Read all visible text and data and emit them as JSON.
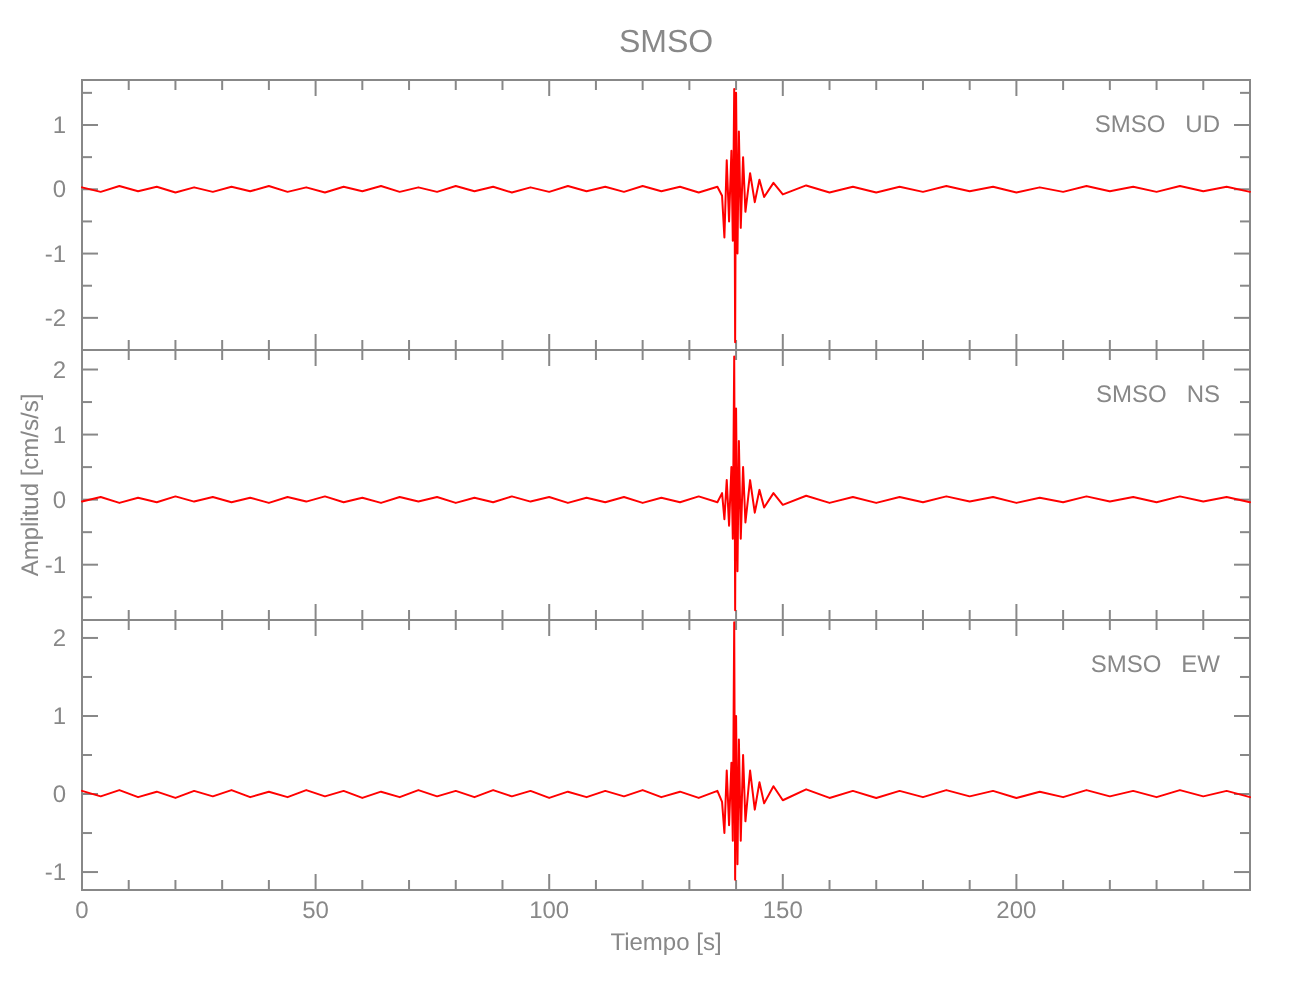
{
  "chart_data": [
    {
      "type": "line",
      "title": "SMSO",
      "annotations": [
        "SMSO   UD"
      ],
      "tick_labels": "y",
      "xlim": [
        0,
        250
      ],
      "ylim": [
        -2.5,
        1.7
      ],
      "xticks": [
        0,
        {
          "value": 10,
          "label": null
        },
        {
          "value": 20,
          "label": null
        },
        {
          "value": 30,
          "label": null
        },
        {
          "value": 40,
          "label": null
        },
        50,
        {
          "value": 60,
          "label": null
        },
        {
          "value": 70,
          "label": null
        },
        {
          "value": 80,
          "label": null
        },
        {
          "value": 90,
          "label": null
        },
        100,
        {
          "value": 110,
          "label": null
        },
        {
          "value": 120,
          "label": null
        },
        {
          "value": 130,
          "label": null
        },
        {
          "value": 140,
          "label": null
        },
        150,
        {
          "value": 160,
          "label": null
        },
        {
          "value": 170,
          "label": null
        },
        {
          "value": 180,
          "label": null
        },
        {
          "value": 190,
          "label": null
        },
        200,
        {
          "value": 210,
          "label": null
        },
        {
          "value": 220,
          "label": null
        },
        {
          "value": 230,
          "label": null
        },
        {
          "value": 240,
          "label": null
        }
      ],
      "yticks": [
        {
          "value": -2.5,
          "label": null
        },
        -2,
        {
          "value": -1.5,
          "label": null
        },
        -1,
        {
          "value": -0.5,
          "label": null
        },
        0,
        {
          "value": 0.5,
          "label": null
        },
        1,
        {
          "value": 1.5,
          "label": null
        }
      ],
      "series": [
        {
          "color": "#ff0000",
          "x": [
            0,
            4,
            8,
            12,
            16,
            20,
            24,
            28,
            32,
            36,
            40,
            44,
            48,
            52,
            56,
            60,
            64,
            68,
            72,
            76,
            80,
            84,
            88,
            92,
            96,
            100,
            104,
            108,
            112,
            116,
            120,
            124,
            128,
            132,
            136,
            137,
            137.5,
            138,
            138.5,
            139,
            139.3,
            139.6,
            139.8,
            140,
            140.3,
            140.6,
            141,
            141.5,
            142,
            143,
            144,
            145,
            146,
            148,
            150,
            155,
            160,
            165,
            170,
            175,
            180,
            185,
            190,
            195,
            200,
            205,
            210,
            215,
            220,
            225,
            230,
            235,
            240,
            245,
            250
          ],
          "values": [
            0.03,
            -0.04,
            0.05,
            -0.03,
            0.04,
            -0.05,
            0.03,
            -0.04,
            0.04,
            -0.03,
            0.05,
            -0.04,
            0.03,
            -0.05,
            0.04,
            -0.03,
            0.05,
            -0.04,
            0.03,
            -0.04,
            0.05,
            -0.03,
            0.04,
            -0.05,
            0.03,
            -0.04,
            0.05,
            -0.03,
            0.04,
            -0.04,
            0.05,
            -0.03,
            0.04,
            -0.05,
            0.04,
            -0.1,
            -0.75,
            0.45,
            -0.5,
            0.6,
            -0.8,
            1.56,
            -2.38,
            1.5,
            -1,
            0.9,
            -0.6,
            0.5,
            -0.35,
            0.25,
            -0.2,
            0.15,
            -0.12,
            0.1,
            -0.08,
            0.06,
            -0.05,
            0.04,
            -0.05,
            0.04,
            -0.04,
            0.05,
            -0.03,
            0.04,
            -0.05,
            0.03,
            -0.04,
            0.05,
            -0.03,
            0.04,
            -0.04,
            0.05,
            -0.03,
            0.04,
            -0.04
          ]
        }
      ]
    },
    {
      "type": "line",
      "ylabel": "Amplitud [cm/s/s]",
      "annotations": [
        "SMSO   NS"
      ],
      "tick_labels": "y",
      "xlim": [
        0,
        250
      ],
      "ylim": [
        -1.85,
        2.3
      ],
      "xticks": [
        0,
        {
          "value": 10,
          "label": null
        },
        {
          "value": 20,
          "label": null
        },
        {
          "value": 30,
          "label": null
        },
        {
          "value": 40,
          "label": null
        },
        50,
        {
          "value": 60,
          "label": null
        },
        {
          "value": 70,
          "label": null
        },
        {
          "value": 80,
          "label": null
        },
        {
          "value": 90,
          "label": null
        },
        100,
        {
          "value": 110,
          "label": null
        },
        {
          "value": 120,
          "label": null
        },
        {
          "value": 130,
          "label": null
        },
        {
          "value": 140,
          "label": null
        },
        150,
        {
          "value": 160,
          "label": null
        },
        {
          "value": 170,
          "label": null
        },
        {
          "value": 180,
          "label": null
        },
        {
          "value": 190,
          "label": null
        },
        200,
        {
          "value": 210,
          "label": null
        },
        {
          "value": 220,
          "label": null
        },
        {
          "value": 230,
          "label": null
        },
        {
          "value": 240,
          "label": null
        }
      ],
      "yticks": [
        {
          "value": -1.5,
          "label": null
        },
        -1,
        {
          "value": -0.5,
          "label": null
        },
        0,
        {
          "value": 0.5,
          "label": null
        },
        1,
        {
          "value": 1.5,
          "label": null
        },
        2
      ],
      "series": [
        {
          "color": "#ff0000",
          "x": [
            0,
            4,
            8,
            12,
            16,
            20,
            24,
            28,
            32,
            36,
            40,
            44,
            48,
            52,
            56,
            60,
            64,
            68,
            72,
            76,
            80,
            84,
            88,
            92,
            96,
            100,
            104,
            108,
            112,
            116,
            120,
            124,
            128,
            132,
            136,
            137,
            137.5,
            138,
            138.5,
            139,
            139.3,
            139.6,
            139.8,
            140,
            140.3,
            140.6,
            141,
            141.5,
            142,
            143,
            144,
            145,
            146,
            148,
            150,
            155,
            160,
            165,
            170,
            175,
            180,
            185,
            190,
            195,
            200,
            205,
            210,
            215,
            220,
            225,
            230,
            235,
            240,
            245,
            250
          ],
          "values": [
            -0.03,
            0.04,
            -0.05,
            0.03,
            -0.04,
            0.05,
            -0.03,
            0.04,
            -0.04,
            0.03,
            -0.05,
            0.04,
            -0.03,
            0.05,
            -0.04,
            0.03,
            -0.05,
            0.04,
            -0.03,
            0.04,
            -0.05,
            0.03,
            -0.04,
            0.05,
            -0.03,
            0.04,
            -0.05,
            0.03,
            -0.04,
            0.04,
            -0.05,
            0.03,
            -0.04,
            0.05,
            -0.04,
            0.1,
            -0.3,
            0.3,
            -0.4,
            0.5,
            -0.6,
            2.2,
            -1.7,
            1.4,
            -1.1,
            0.9,
            -0.6,
            0.5,
            -0.35,
            0.3,
            -0.2,
            0.15,
            -0.12,
            0.1,
            -0.08,
            0.06,
            -0.05,
            0.04,
            -0.05,
            0.04,
            -0.04,
            0.05,
            -0.03,
            0.04,
            -0.05,
            0.03,
            -0.04,
            0.05,
            -0.03,
            0.04,
            -0.04,
            0.05,
            -0.03,
            0.04,
            -0.04
          ]
        }
      ]
    },
    {
      "type": "line",
      "xlabel": "Tiempo [s]",
      "annotations": [
        "SMSO   EW"
      ],
      "xlim": [
        0,
        250
      ],
      "ylim": [
        -1.23,
        2.23
      ],
      "xticks": [
        0,
        {
          "value": 10,
          "label": null
        },
        {
          "value": 20,
          "label": null
        },
        {
          "value": 30,
          "label": null
        },
        {
          "value": 40,
          "label": null
        },
        50,
        {
          "value": 60,
          "label": null
        },
        {
          "value": 70,
          "label": null
        },
        {
          "value": 80,
          "label": null
        },
        {
          "value": 90,
          "label": null
        },
        100,
        {
          "value": 110,
          "label": null
        },
        {
          "value": 120,
          "label": null
        },
        {
          "value": 130,
          "label": null
        },
        {
          "value": 140,
          "label": null
        },
        150,
        {
          "value": 160,
          "label": null
        },
        {
          "value": 170,
          "label": null
        },
        {
          "value": 180,
          "label": null
        },
        {
          "value": 190,
          "label": null
        },
        200,
        {
          "value": 210,
          "label": null
        },
        {
          "value": 220,
          "label": null
        },
        {
          "value": 230,
          "label": null
        },
        {
          "value": 240,
          "label": null
        }
      ],
      "yticks": [
        -1,
        {
          "value": -0.5,
          "label": null
        },
        0,
        {
          "value": 0.5,
          "label": null
        },
        1,
        {
          "value": 1.5,
          "label": null
        },
        2
      ],
      "series": [
        {
          "color": "#ff0000",
          "x": [
            0,
            4,
            8,
            12,
            16,
            20,
            24,
            28,
            32,
            36,
            40,
            44,
            48,
            52,
            56,
            60,
            64,
            68,
            72,
            76,
            80,
            84,
            88,
            92,
            96,
            100,
            104,
            108,
            112,
            116,
            120,
            124,
            128,
            132,
            136,
            137,
            137.5,
            138,
            138.5,
            139,
            139.3,
            139.6,
            139.8,
            140,
            140.3,
            140.6,
            141,
            141.5,
            142,
            143,
            144,
            145,
            146,
            148,
            150,
            155,
            160,
            165,
            170,
            175,
            180,
            185,
            190,
            195,
            200,
            205,
            210,
            215,
            220,
            225,
            230,
            235,
            240,
            245,
            250
          ],
          "values": [
            0.04,
            -0.03,
            0.05,
            -0.04,
            0.03,
            -0.05,
            0.04,
            -0.03,
            0.05,
            -0.04,
            0.03,
            -0.04,
            0.05,
            -0.03,
            0.04,
            -0.05,
            0.03,
            -0.04,
            0.05,
            -0.03,
            0.04,
            -0.04,
            0.05,
            -0.03,
            0.04,
            -0.05,
            0.03,
            -0.04,
            0.04,
            -0.03,
            0.05,
            -0.04,
            0.03,
            -0.05,
            0.04,
            -0.1,
            -0.5,
            0.3,
            -0.4,
            0.4,
            -0.6,
            2.2,
            -1.1,
            1.0,
            -0.9,
            0.7,
            -0.6,
            0.5,
            -0.35,
            0.3,
            -0.2,
            0.15,
            -0.12,
            0.1,
            -0.08,
            0.06,
            -0.05,
            0.04,
            -0.05,
            0.04,
            -0.04,
            0.05,
            -0.03,
            0.04,
            -0.05,
            0.03,
            -0.04,
            0.05,
            -0.03,
            0.04,
            -0.04,
            0.05,
            -0.03,
            0.04,
            -0.04
          ]
        }
      ]
    }
  ]
}
